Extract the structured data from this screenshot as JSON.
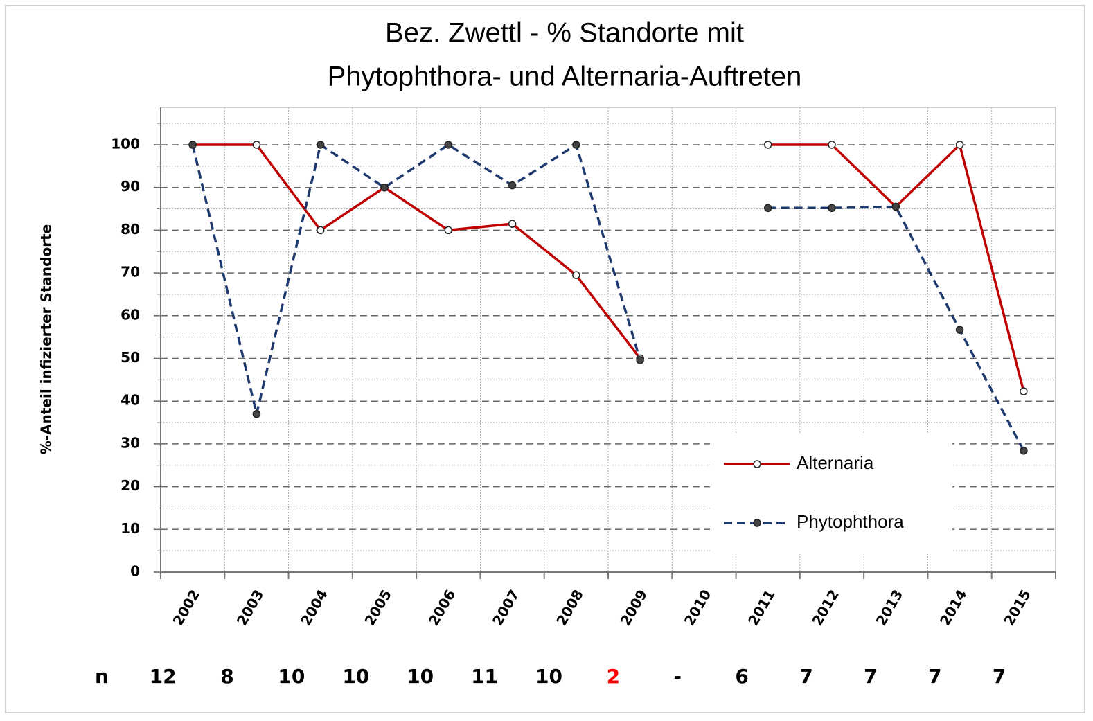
{
  "chart_data": {
    "type": "line",
    "title": [
      "Bez. Zwettl - % Standorte mit",
      "Phytophthora- und Alternaria-Auftreten"
    ],
    "ylabel": "%-Anteil infizierter Standorte",
    "categories": [
      "2002",
      "2003",
      "2004",
      "2005",
      "2006",
      "2007",
      "2008",
      "2009",
      "2010",
      "2011",
      "2012",
      "2013",
      "2014",
      "2015"
    ],
    "series": [
      {
        "name": "Alternaria",
        "color": "#c00000",
        "dash": false,
        "marker_fill": false,
        "values": [
          100,
          100,
          80,
          90,
          80,
          81.5,
          69.5,
          50,
          null,
          100,
          100,
          85.5,
          100,
          42.3
        ]
      },
      {
        "name": "Phytophthora",
        "color": "#1f3a6e",
        "dash": true,
        "marker_fill": true,
        "values": [
          100,
          37,
          100,
          90,
          100,
          90.5,
          100,
          49.6,
          null,
          85.2,
          85.2,
          85.5,
          56.7,
          28.4
        ]
      }
    ],
    "ylim": [
      0,
      108.75
    ],
    "yticks": [
      0,
      10,
      20,
      30,
      40,
      50,
      60,
      70,
      80,
      90,
      100
    ],
    "minor_yticks": [
      5,
      15,
      25,
      35,
      45,
      55,
      65,
      75,
      85,
      95,
      105
    ],
    "grid": true,
    "legend": "lower right",
    "n_row": {
      "label": "n",
      "values": [
        "12",
        "8",
        "10",
        "10",
        "10",
        "11",
        "10",
        "2",
        "-",
        "6",
        "7",
        "7",
        "7",
        "7"
      ],
      "highlight": {
        "index": 7,
        "color": "#ff0000"
      }
    }
  }
}
